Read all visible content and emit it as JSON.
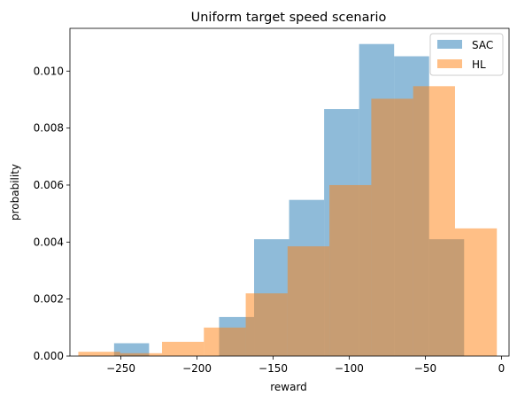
{
  "chart_data": {
    "type": "bar",
    "title": "Uniform target speed scenario",
    "xlabel": "reward",
    "ylabel": "probability",
    "xlim": [
      -283.5,
      5
    ],
    "ylim": [
      0,
      0.0115
    ],
    "xticks": [
      -250,
      -200,
      -150,
      -100,
      -50,
      0
    ],
    "xtick_labels": [
      "−250",
      "−200",
      "−150",
      "−100",
      "−50",
      "0"
    ],
    "yticks": [
      0,
      0.002,
      0.004,
      0.006,
      0.008,
      0.01
    ],
    "ytick_labels": [
      "0.000",
      "0.002",
      "0.004",
      "0.006",
      "0.008",
      "0.010"
    ],
    "legend_position": "top-right",
    "series": [
      {
        "name": "SAC",
        "color": "#1f77b4",
        "alpha": 0.5,
        "bins": [
          {
            "x0": -254.5,
            "x1": -231.5,
            "value": 0.00045
          },
          {
            "x0": -231.5,
            "x1": -208.5,
            "value": 0.0
          },
          {
            "x0": -208.5,
            "x1": -185.5,
            "value": 0.0
          },
          {
            "x0": -185.5,
            "x1": -162.5,
            "value": 0.00137
          },
          {
            "x0": -162.5,
            "x1": -139.5,
            "value": 0.0041
          },
          {
            "x0": -139.5,
            "x1": -116.5,
            "value": 0.00548
          },
          {
            "x0": -116.5,
            "x1": -93.5,
            "value": 0.00867
          },
          {
            "x0": -93.5,
            "x1": -70.5,
            "value": 0.01095
          },
          {
            "x0": -70.5,
            "x1": -47.5,
            "value": 0.01052
          },
          {
            "x0": -47.5,
            "x1": -24.5,
            "value": 0.0041
          }
        ]
      },
      {
        "name": "HL",
        "color": "#ff7f0e",
        "alpha": 0.5,
        "bins": [
          {
            "x0": -278,
            "x1": -250.5,
            "value": 0.00015
          },
          {
            "x0": -250.5,
            "x1": -223,
            "value": 0.0001
          },
          {
            "x0": -223,
            "x1": -195.5,
            "value": 0.0005
          },
          {
            "x0": -195.5,
            "x1": -168,
            "value": 0.001
          },
          {
            "x0": -168,
            "x1": -140.5,
            "value": 0.0022
          },
          {
            "x0": -140.5,
            "x1": -113,
            "value": 0.00385
          },
          {
            "x0": -113,
            "x1": -85.5,
            "value": 0.006
          },
          {
            "x0": -85.5,
            "x1": -58,
            "value": 0.00903
          },
          {
            "x0": -58,
            "x1": -30.5,
            "value": 0.00947
          },
          {
            "x0": -30.5,
            "x1": -3,
            "value": 0.00448
          }
        ]
      }
    ]
  }
}
